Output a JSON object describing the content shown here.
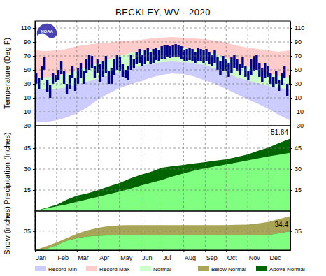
{
  "logo_text": "NOAA",
  "legend_entries": [
    {
      "name": "Record Min",
      "color": "#ccccff"
    },
    {
      "name": "Record Max",
      "color": "#ffcccc"
    },
    {
      "name": "Normal",
      "color": "#ccffcc"
    },
    {
      "name": "Below Normal",
      "color": "#a9a557"
    },
    {
      "name": "Above Normal",
      "color": "#006400"
    }
  ],
  "chart_data": [
    {
      "type": "band",
      "title": "BECKLEY, WV - 2020",
      "y_label": "Temperature (Deg F)",
      "xlim": [
        1,
        367
      ],
      "ylim": [
        -30,
        120
      ],
      "yticks": [
        -30,
        -10,
        10,
        30,
        50,
        70,
        90,
        110
      ],
      "xticks": [
        {
          "value": 1,
          "label": "Jan"
        },
        {
          "value": 32,
          "label": "Feb"
        },
        {
          "value": 61,
          "label": "Mar"
        },
        {
          "value": 92,
          "label": "Apr"
        },
        {
          "value": 122,
          "label": "May"
        },
        {
          "value": 153,
          "label": "Jun"
        },
        {
          "value": 183,
          "label": "Jul"
        },
        {
          "value": 214,
          "label": "Aug"
        },
        {
          "value": 245,
          "label": "Sep"
        },
        {
          "value": 275,
          "label": "Oct"
        },
        {
          "value": 306,
          "label": "Nov"
        },
        {
          "value": 336,
          "label": "Dec"
        }
      ],
      "grid": true,
      "tick_labels": "y",
      "x": [
        1,
        15,
        32,
        46,
        61,
        75,
        92,
        106,
        122,
        136,
        153,
        167,
        183,
        197,
        214,
        228,
        245,
        259,
        275,
        289,
        306,
        320,
        336,
        350,
        366
      ],
      "series": [
        {
          "values": [
            78,
            77,
            78,
            80,
            84,
            86,
            88,
            89,
            91,
            92,
            93,
            95,
            96,
            97,
            96,
            95,
            94,
            92,
            89,
            85,
            82,
            80,
            78,
            76,
            78
          ]
        },
        {
          "values": [
            -24,
            -25,
            -22,
            -18,
            -12,
            -4,
            8,
            16,
            24,
            29,
            34,
            39,
            43,
            45,
            44,
            41,
            35,
            30,
            23,
            16,
            8,
            2,
            -6,
            -14,
            -22
          ]
        },
        {
          "values": [
            40,
            39,
            41,
            44,
            49,
            54,
            60,
            65,
            70,
            74,
            77,
            79,
            81,
            82,
            81,
            80,
            77,
            73,
            67,
            61,
            55,
            50,
            45,
            41,
            40
          ],
          "lows": [
            23,
            22,
            23,
            25,
            29,
            33,
            38,
            42,
            47,
            51,
            56,
            59,
            61,
            62,
            61,
            60,
            57,
            52,
            46,
            40,
            35,
            31,
            27,
            24,
            23
          ]
        },
        {
          "type": "range_bar",
          "color": "#000080",
          "x": [
            1,
            5,
            9,
            13,
            17,
            21,
            25,
            29,
            33,
            37,
            41,
            45,
            49,
            53,
            57,
            61,
            65,
            69,
            73,
            77,
            81,
            85,
            89,
            93,
            97,
            101,
            105,
            109,
            113,
            117,
            121,
            125,
            129,
            133,
            137,
            141,
            145,
            149,
            153,
            157,
            161,
            165,
            169,
            173,
            177,
            181,
            185,
            189,
            193,
            197,
            201,
            205,
            209,
            213,
            217,
            221,
            225,
            229,
            233,
            237,
            241,
            245,
            249,
            253,
            257,
            261,
            265,
            269,
            273,
            277,
            281,
            285,
            289,
            293,
            297,
            301,
            305,
            309,
            313,
            317,
            321,
            325,
            329,
            333,
            337,
            341,
            345,
            349,
            353,
            357,
            361,
            365
          ],
          "values": [
            45,
            38,
            55,
            68,
            35,
            28,
            45,
            42,
            50,
            62,
            48,
            30,
            42,
            55,
            38,
            52,
            60,
            48,
            66,
            72,
            70,
            55,
            65,
            58,
            62,
            70,
            48,
            52,
            65,
            72,
            68,
            58,
            50,
            55,
            72,
            65,
            75,
            80,
            72,
            78,
            82,
            76,
            80,
            82,
            78,
            84,
            85,
            86,
            84,
            86,
            87,
            85,
            84,
            78,
            80,
            82,
            80,
            76,
            82,
            80,
            78,
            80,
            76,
            72,
            78,
            68,
            62,
            70,
            66,
            60,
            68,
            72,
            65,
            58,
            68,
            55,
            48,
            65,
            70,
            72,
            60,
            52,
            60,
            55,
            45,
            40,
            48,
            35,
            45,
            55,
            30,
            42
          ],
          "lows": [
            30,
            22,
            35,
            50,
            18,
            10,
            30,
            32,
            35,
            44,
            30,
            15,
            22,
            38,
            20,
            30,
            38,
            30,
            45,
            50,
            52,
            38,
            45,
            32,
            40,
            45,
            30,
            30,
            42,
            50,
            48,
            40,
            38,
            35,
            50,
            52,
            58,
            60,
            55,
            58,
            62,
            58,
            60,
            64,
            62,
            66,
            66,
            68,
            67,
            68,
            69,
            68,
            66,
            63,
            62,
            64,
            62,
            60,
            63,
            62,
            60,
            62,
            58,
            55,
            60,
            50,
            42,
            48,
            48,
            40,
            45,
            52,
            48,
            42,
            52,
            40,
            36,
            42,
            48,
            50,
            40,
            32,
            38,
            40,
            30,
            25,
            30,
            20,
            28,
            38,
            12,
            28
          ]
        }
      ]
    },
    {
      "type": "area",
      "y_label": "Precipitation (Inches)",
      "xlim": [
        1,
        367
      ],
      "ylim": [
        0,
        61
      ],
      "yticks": [
        15,
        30,
        45
      ],
      "xticks": [
        {
          "value": 1,
          "label": "Jan"
        },
        {
          "value": 32,
          "label": "Feb"
        },
        {
          "value": 61,
          "label": "Mar"
        },
        {
          "value": 92,
          "label": "Apr"
        },
        {
          "value": 122,
          "label": "May"
        },
        {
          "value": 153,
          "label": "Jun"
        },
        {
          "value": 183,
          "label": "Jul"
        },
        {
          "value": 214,
          "label": "Aug"
        },
        {
          "value": 245,
          "label": "Sep"
        },
        {
          "value": 275,
          "label": "Oct"
        },
        {
          "value": 306,
          "label": "Nov"
        },
        {
          "value": 336,
          "label": "Dec"
        }
      ],
      "grid": true,
      "tick_labels": "y",
      "x": [
        1,
        15,
        32,
        46,
        61,
        75,
        92,
        106,
        122,
        136,
        153,
        167,
        183,
        197,
        214,
        228,
        245,
        259,
        275,
        289,
        306,
        320,
        336,
        350,
        366
      ],
      "series": [
        {
          "color": "#80ff80",
          "values": [
            0,
            1.6,
            3.4,
            4.8,
            6.6,
            8.3,
            10.3,
            12,
            13.9,
            15.8,
            18.2,
            20.1,
            22.3,
            24.5,
            26.9,
            28.7,
            30.6,
            31.9,
            33.4,
            34.6,
            36.3,
            37.6,
            39.1,
            40.3,
            41.6
          ]
        },
        {
          "values": [
            0,
            2,
            4.5,
            8,
            11,
            12.5,
            15,
            17.5,
            20,
            23,
            26,
            28,
            31,
            32,
            33,
            34,
            35,
            36,
            37,
            38.5,
            40.5,
            43,
            45.5,
            48.5,
            51.64
          ]
        }
      ],
      "annotations": [
        "51.64"
      ]
    },
    {
      "type": "area",
      "y_label": "Snow (inches)",
      "xlim": [
        1,
        367
      ],
      "ylim": [
        0,
        72
      ],
      "yticks": [
        35
      ],
      "xticks": [
        {
          "value": 1,
          "label": "Jan"
        },
        {
          "value": 32,
          "label": "Feb"
        },
        {
          "value": 61,
          "label": "Mar"
        },
        {
          "value": 92,
          "label": "Apr"
        },
        {
          "value": 122,
          "label": "May"
        },
        {
          "value": 153,
          "label": "Jun"
        },
        {
          "value": 183,
          "label": "Jul"
        },
        {
          "value": 214,
          "label": "Aug"
        },
        {
          "value": 245,
          "label": "Sep"
        },
        {
          "value": 275,
          "label": "Oct"
        },
        {
          "value": 306,
          "label": "Nov"
        },
        {
          "value": 336,
          "label": "Dec"
        }
      ],
      "grid": true,
      "tick_labels": true,
      "x": [
        1,
        15,
        32,
        46,
        61,
        75,
        92,
        106,
        122,
        136,
        153,
        167,
        183,
        197,
        214,
        228,
        245,
        259,
        275,
        289,
        306,
        320,
        336,
        350,
        366
      ],
      "series": [
        {
          "color": "#80ff80",
          "values": [
            0,
            6,
            14,
            22,
            30,
            36,
            41,
            44,
            45.5,
            46,
            46,
            46,
            46,
            46,
            46,
            46,
            46,
            46,
            46,
            46.5,
            47,
            49,
            52,
            57,
            62
          ]
        },
        {
          "values": [
            0,
            1,
            9,
            17,
            22,
            25,
            26.5,
            27,
            27,
            27,
            27,
            27,
            27,
            27,
            27,
            27,
            27,
            27,
            27,
            27,
            27,
            27,
            28,
            31,
            34.4
          ]
        }
      ],
      "annotations": [
        "34.4"
      ]
    }
  ]
}
